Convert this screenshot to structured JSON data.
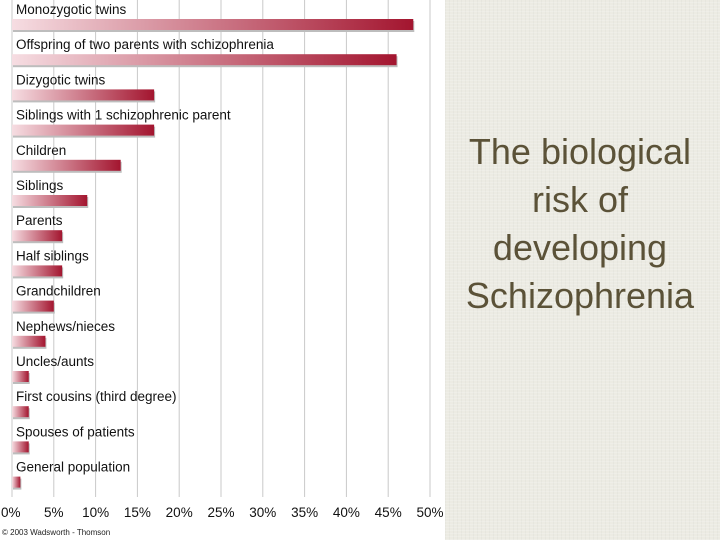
{
  "slide": {
    "title": "The biological risk of developing Schizophrenia",
    "copyright": "© 2003 Wadsworth - Thomson"
  },
  "colors": {
    "bar_dark": "#a3152f",
    "bar_light": "#f6dde2",
    "gridline": "#c9c9c9",
    "title_text": "#5b5238",
    "panel_bg": "#ecebe3"
  },
  "chart_data": {
    "type": "bar",
    "orientation": "horizontal",
    "categories": [
      "Monozygotic twins",
      "Offspring of two parents with schizophrenia",
      "Dizygotic twins",
      "Siblings with 1 schizophrenic parent",
      "Children",
      "Siblings",
      "Parents",
      "Half siblings",
      "Grandchildren",
      "Nephews/nieces",
      "Uncles/aunts",
      "First cousins (third degree)",
      "Spouses of patients",
      "General population"
    ],
    "values": [
      48,
      46,
      17,
      17,
      13,
      9,
      6,
      6,
      5,
      4,
      2,
      2,
      2,
      1
    ],
    "xlim": [
      0,
      50
    ],
    "x_ticks": [
      "0%",
      "5%",
      "10%",
      "15%",
      "20%",
      "25%",
      "30%",
      "35%",
      "40%",
      "45%",
      "50%"
    ],
    "grid": true
  }
}
